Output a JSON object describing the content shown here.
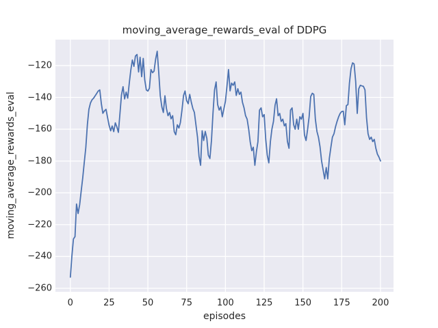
{
  "figure": {
    "background": "#ffffff",
    "panel_background": "#eaeaf2",
    "grid_color": "#ffffff",
    "text_color": "#262626"
  },
  "chart_data": {
    "type": "line",
    "title": "moving_average_rewards_eval of DDPG",
    "xlabel": "episodes",
    "ylabel": "moving_average_rewards_eval",
    "legend": "none",
    "grid": true,
    "line_color": "#4c72b0",
    "line_width": 1.8,
    "xlim": [
      -9.6,
      208.4
    ],
    "ylim": [
      -262.2,
      -103.7
    ],
    "x_tick_values": [
      0,
      25,
      50,
      75,
      100,
      125,
      150,
      175,
      200
    ],
    "x_tick_labels": [
      "0",
      "25",
      "50",
      "75",
      "100",
      "125",
      "150",
      "175",
      "200"
    ],
    "y_tick_values": [
      -120,
      -140,
      -160,
      -180,
      -200,
      -220,
      -240,
      -260
    ],
    "y_tick_labels": [
      "−120",
      "−140",
      "−160",
      "−180",
      "−200",
      "−220",
      "−240",
      "−260"
    ],
    "x_start": 0,
    "x_step": 1,
    "series_name": "moving_average_rewards_eval",
    "values": [
      -253.0,
      -240.0,
      -229.0,
      -227.5,
      -207.0,
      -213.0,
      -207.5,
      -199.0,
      -190.5,
      -181.0,
      -171.5,
      -157.0,
      -147.5,
      -143.5,
      -141.5,
      -140.5,
      -139.0,
      -137.5,
      -136.0,
      -135.3,
      -144.0,
      -150.0,
      -148.5,
      -147.5,
      -152.5,
      -157.5,
      -161.0,
      -158.0,
      -161.5,
      -156.0,
      -158.5,
      -162.0,
      -150.0,
      -138.5,
      -133.3,
      -141.0,
      -136.7,
      -140.5,
      -131.0,
      -123.0,
      -116.5,
      -120.5,
      -114.0,
      -113.0,
      -124.0,
      -114.8,
      -127.0,
      -115.5,
      -129.0,
      -135.3,
      -136.0,
      -134.3,
      -122.5,
      -124.5,
      -123.5,
      -116.0,
      -111.0,
      -124.0,
      -139.0,
      -146.0,
      -149.5,
      -139.0,
      -147.0,
      -151.5,
      -149.5,
      -153.5,
      -151.5,
      -161.5,
      -163.5,
      -157.2,
      -159.3,
      -155.8,
      -148.0,
      -138.8,
      -136.0,
      -142.0,
      -144.0,
      -138.1,
      -143.0,
      -147.0,
      -149.4,
      -157.2,
      -165.0,
      -177.0,
      -182.7,
      -161.0,
      -167.1,
      -161.4,
      -165.7,
      -176.3,
      -178.4,
      -167.1,
      -150.0,
      -135.3,
      -130.3,
      -144.5,
      -148.0,
      -145.9,
      -152.2,
      -147.3,
      -142.4,
      -133.1,
      -122.5,
      -135.9,
      -131.0,
      -132.4,
      -130.3,
      -138.8,
      -134.6,
      -138.1,
      -136.7,
      -143.1,
      -146.6,
      -151.5,
      -153.7,
      -160.0,
      -168.0,
      -173.5,
      -171.3,
      -182.7,
      -174.0,
      -167.8,
      -148.0,
      -146.6,
      -152.2,
      -150.8,
      -166.4,
      -176.3,
      -181.2,
      -167.8,
      -160.0,
      -155.1,
      -145.0,
      -140.9,
      -151.5,
      -150.1,
      -155.1,
      -153.7,
      -157.9,
      -156.5,
      -167.8,
      -172.0,
      -148.0,
      -146.6,
      -157.2,
      -160.0,
      -153.7,
      -160.0,
      -152.2,
      -153.7,
      -150.1,
      -163.6,
      -167.1,
      -160.0,
      -152.2,
      -139.5,
      -137.4,
      -138.1,
      -153.7,
      -161.4,
      -165.0,
      -171.0,
      -180.0,
      -185.5,
      -191.2,
      -184.1,
      -191.2,
      -178.4,
      -171.3,
      -165.0,
      -162.9,
      -158.6,
      -155.1,
      -152.2,
      -150.1,
      -148.9,
      -148.7,
      -157.2,
      -145.2,
      -144.5,
      -131.0,
      -122.0,
      -118.3,
      -119.0,
      -130.0,
      -150.1,
      -134.6,
      -132.4,
      -132.8,
      -133.1,
      -135.3,
      -152.9,
      -162.9,
      -166.4,
      -165.0,
      -167.8,
      -166.4,
      -172.0,
      -175.6,
      -177.5,
      -180.0
    ]
  }
}
